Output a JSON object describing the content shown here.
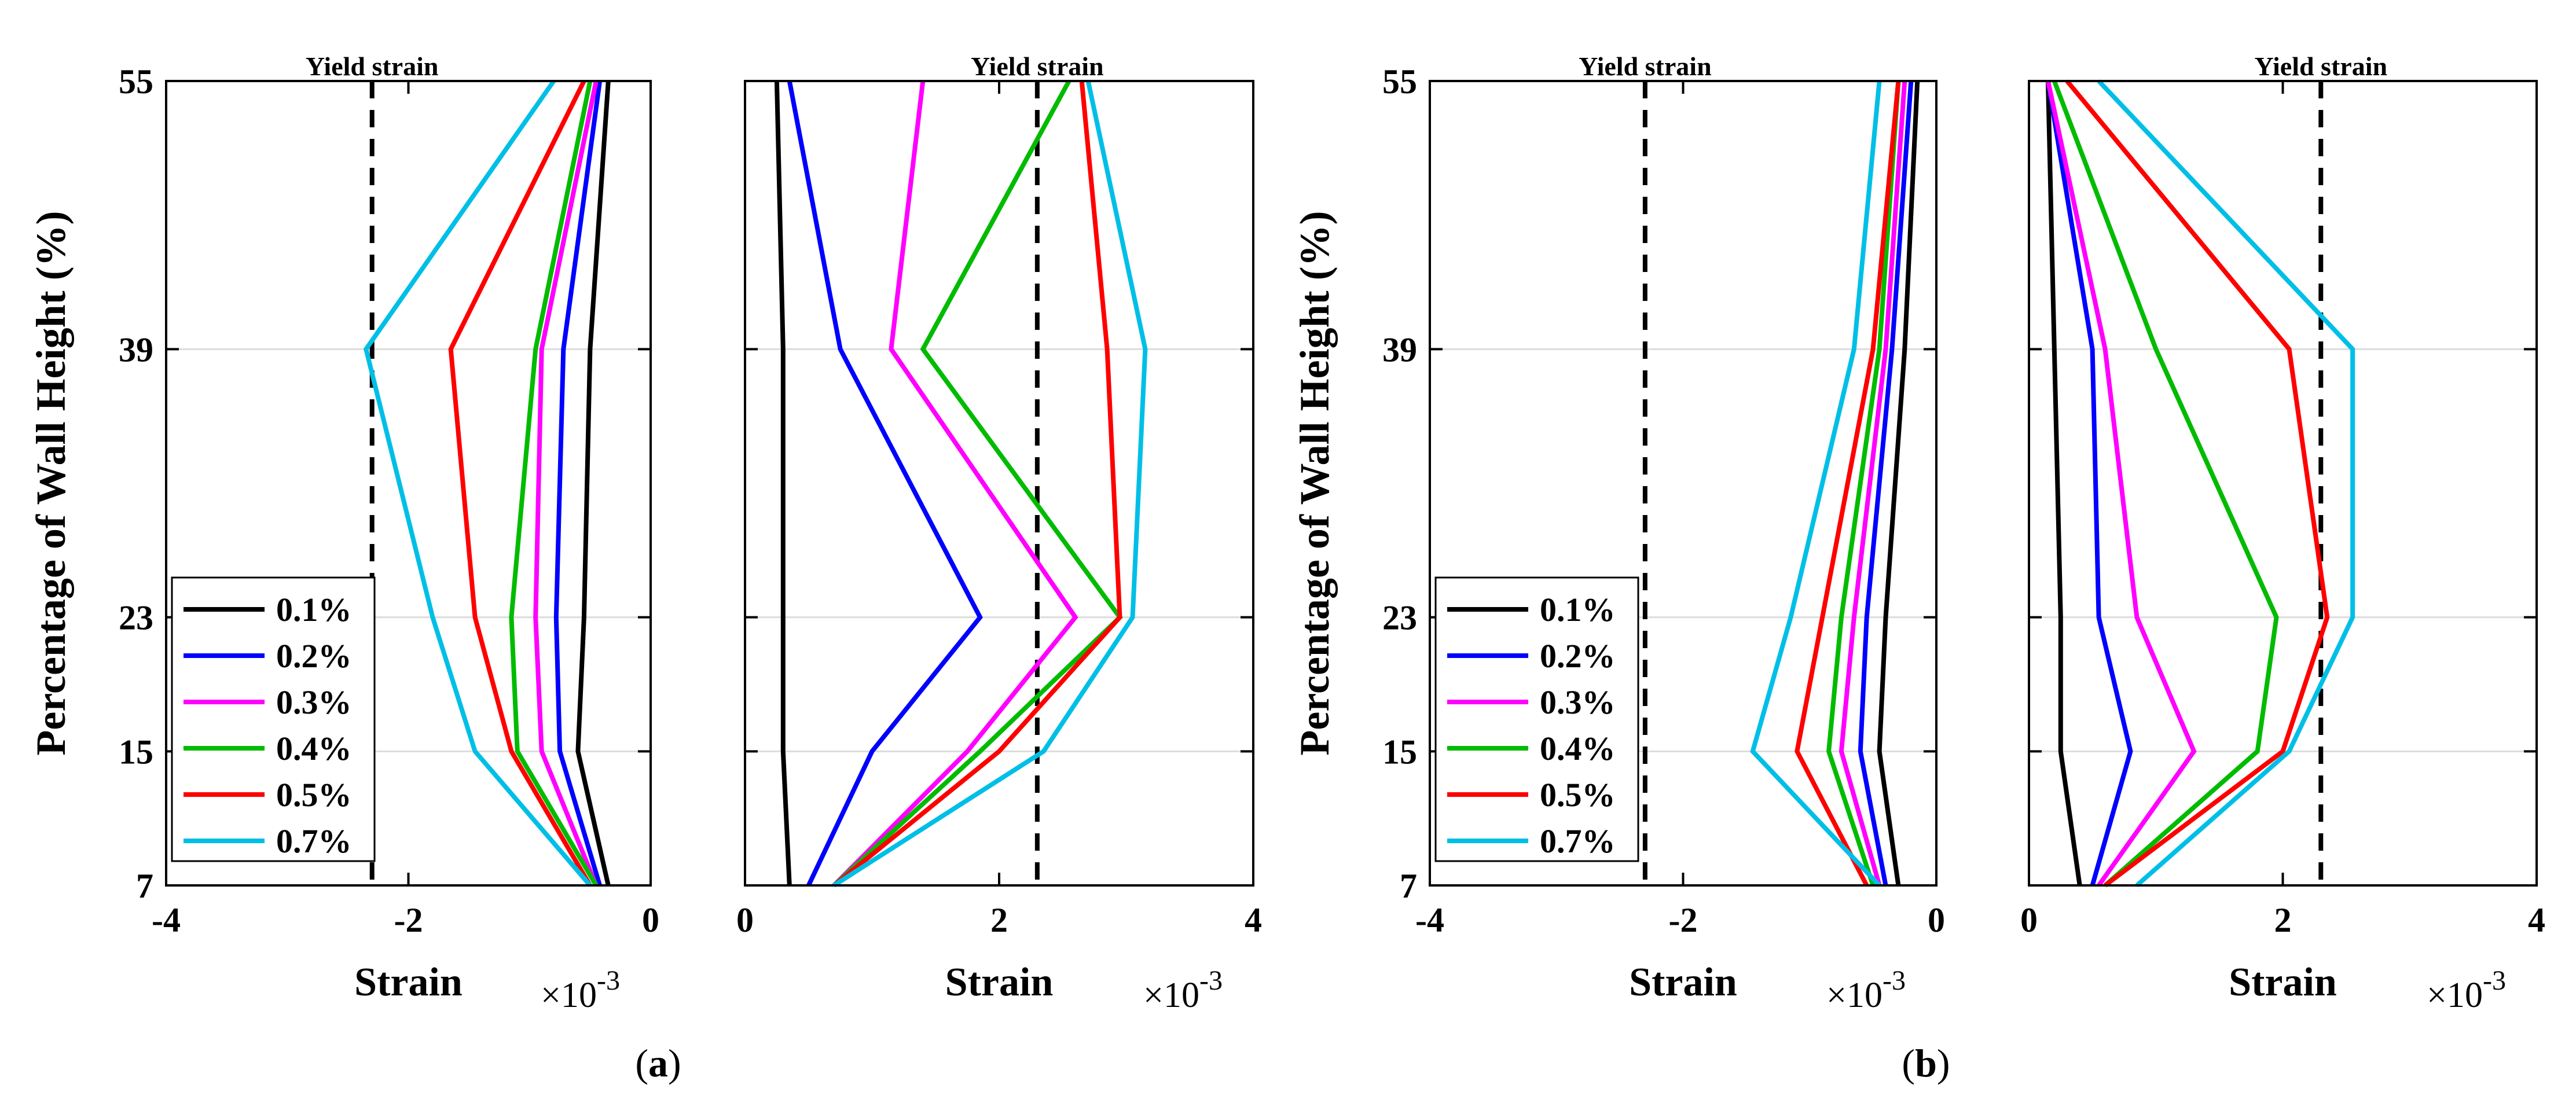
{
  "chart_data": {
    "type": "line",
    "series_style": [
      {
        "name": "0.1%",
        "color": "#000000"
      },
      {
        "name": "0.2%",
        "color": "#0000ff"
      },
      {
        "name": "0.3%",
        "color": "#ff00ff"
      },
      {
        "name": "0.4%",
        "color": "#00bb00"
      },
      {
        "name": "0.5%",
        "color": "#ff0000"
      },
      {
        "name": "0.7%",
        "color": "#00bfe6"
      }
    ],
    "y_levels": [
      7,
      15,
      23,
      39,
      55
    ],
    "ylabel": "Percentage of Wall Height (%)",
    "xlabel": "Strain",
    "x_multiplier": "×10",
    "x_exponent": "-3",
    "yield_label": "Yield strain",
    "subfigures": [
      {
        "label": "(a)",
        "label_open": "(",
        "label_letter": "a",
        "label_close": ")",
        "panels": [
          {
            "side": "compression",
            "xlim": [
              -4,
              0
            ],
            "xticks": [
              "-4",
              "-2",
              "0"
            ],
            "yield_x": -2.3,
            "show_legend": true,
            "series": [
              {
                "name": "0.1%",
                "x": [
                  -0.35,
                  -0.6,
                  -0.55,
                  -0.5,
                  -0.35
                ]
              },
              {
                "name": "0.2%",
                "x": [
                  -0.42,
                  -0.75,
                  -0.78,
                  -0.72,
                  -0.42
                ]
              },
              {
                "name": "0.3%",
                "x": [
                  -0.45,
                  -0.9,
                  -0.95,
                  -0.9,
                  -0.45
                ]
              },
              {
                "name": "0.4%",
                "x": [
                  -0.45,
                  -1.1,
                  -1.15,
                  -0.95,
                  -0.5
                ]
              },
              {
                "name": "0.5%",
                "x": [
                  -0.5,
                  -1.15,
                  -1.45,
                  -1.65,
                  -0.55
                ]
              },
              {
                "name": "0.7%",
                "x": [
                  -0.5,
                  -1.45,
                  -1.8,
                  -2.35,
                  -0.8
                ]
              }
            ]
          },
          {
            "side": "tension",
            "xlim": [
              0,
              4
            ],
            "xticks": [
              "0",
              "2",
              "4"
            ],
            "yield_x": 2.3,
            "show_legend": false,
            "series": [
              {
                "name": "0.1%",
                "x": [
                  0.35,
                  0.3,
                  0.3,
                  0.3,
                  0.25
                ]
              },
              {
                "name": "0.2%",
                "x": [
                  0.5,
                  1.0,
                  1.85,
                  0.75,
                  0.35
                ]
              },
              {
                "name": "0.3%",
                "x": [
                  0.7,
                  1.75,
                  2.6,
                  1.15,
                  1.4
                ]
              },
              {
                "name": "0.4%",
                "x": [
                  0.7,
                  1.85,
                  2.95,
                  1.4,
                  2.55
                ]
              },
              {
                "name": "0.5%",
                "x": [
                  0.7,
                  2.0,
                  2.95,
                  2.85,
                  2.65
                ]
              },
              {
                "name": "0.7%",
                "x": [
                  0.7,
                  2.35,
                  3.05,
                  3.15,
                  2.7
                ]
              }
            ]
          }
        ]
      },
      {
        "label": "(b)",
        "label_open": "(",
        "label_letter": "b",
        "label_close": ")",
        "panels": [
          {
            "side": "compression",
            "xlim": [
              -4,
              0
            ],
            "xticks": [
              "-4",
              "-2",
              "0"
            ],
            "yield_x": -2.3,
            "show_legend": true,
            "series": [
              {
                "name": "0.1%",
                "x": [
                  -0.3,
                  -0.45,
                  -0.4,
                  -0.25,
                  -0.15
                ]
              },
              {
                "name": "0.2%",
                "x": [
                  -0.4,
                  -0.6,
                  -0.55,
                  -0.35,
                  -0.2
                ]
              },
              {
                "name": "0.3%",
                "x": [
                  -0.45,
                  -0.75,
                  -0.65,
                  -0.4,
                  -0.25
                ]
              },
              {
                "name": "0.4%",
                "x": [
                  -0.5,
                  -0.85,
                  -0.75,
                  -0.45,
                  -0.3
                ]
              },
              {
                "name": "0.5%",
                "x": [
                  -0.55,
                  -1.1,
                  -0.9,
                  -0.5,
                  -0.3
                ]
              },
              {
                "name": "0.7%",
                "x": [
                  -0.45,
                  -1.45,
                  -1.15,
                  -0.65,
                  -0.45
                ]
              }
            ]
          },
          {
            "side": "tension",
            "xlim": [
              0,
              4
            ],
            "xticks": [
              "0",
              "2",
              "4"
            ],
            "yield_x": 2.3,
            "show_legend": false,
            "series": [
              {
                "name": "0.1%",
                "x": [
                  0.4,
                  0.25,
                  0.25,
                  0.2,
                  0.15
                ]
              },
              {
                "name": "0.2%",
                "x": [
                  0.5,
                  0.8,
                  0.55,
                  0.5,
                  0.15
                ]
              },
              {
                "name": "0.3%",
                "x": [
                  0.55,
                  1.3,
                  0.85,
                  0.6,
                  0.15
                ]
              },
              {
                "name": "0.4%",
                "x": [
                  0.6,
                  1.8,
                  1.95,
                  1.0,
                  0.2
                ]
              },
              {
                "name": "0.5%",
                "x": [
                  0.6,
                  2.0,
                  2.35,
                  2.05,
                  0.3
                ]
              },
              {
                "name": "0.7%",
                "x": [
                  0.85,
                  2.05,
                  2.55,
                  2.55,
                  0.55
                ]
              }
            ]
          }
        ]
      }
    ]
  }
}
